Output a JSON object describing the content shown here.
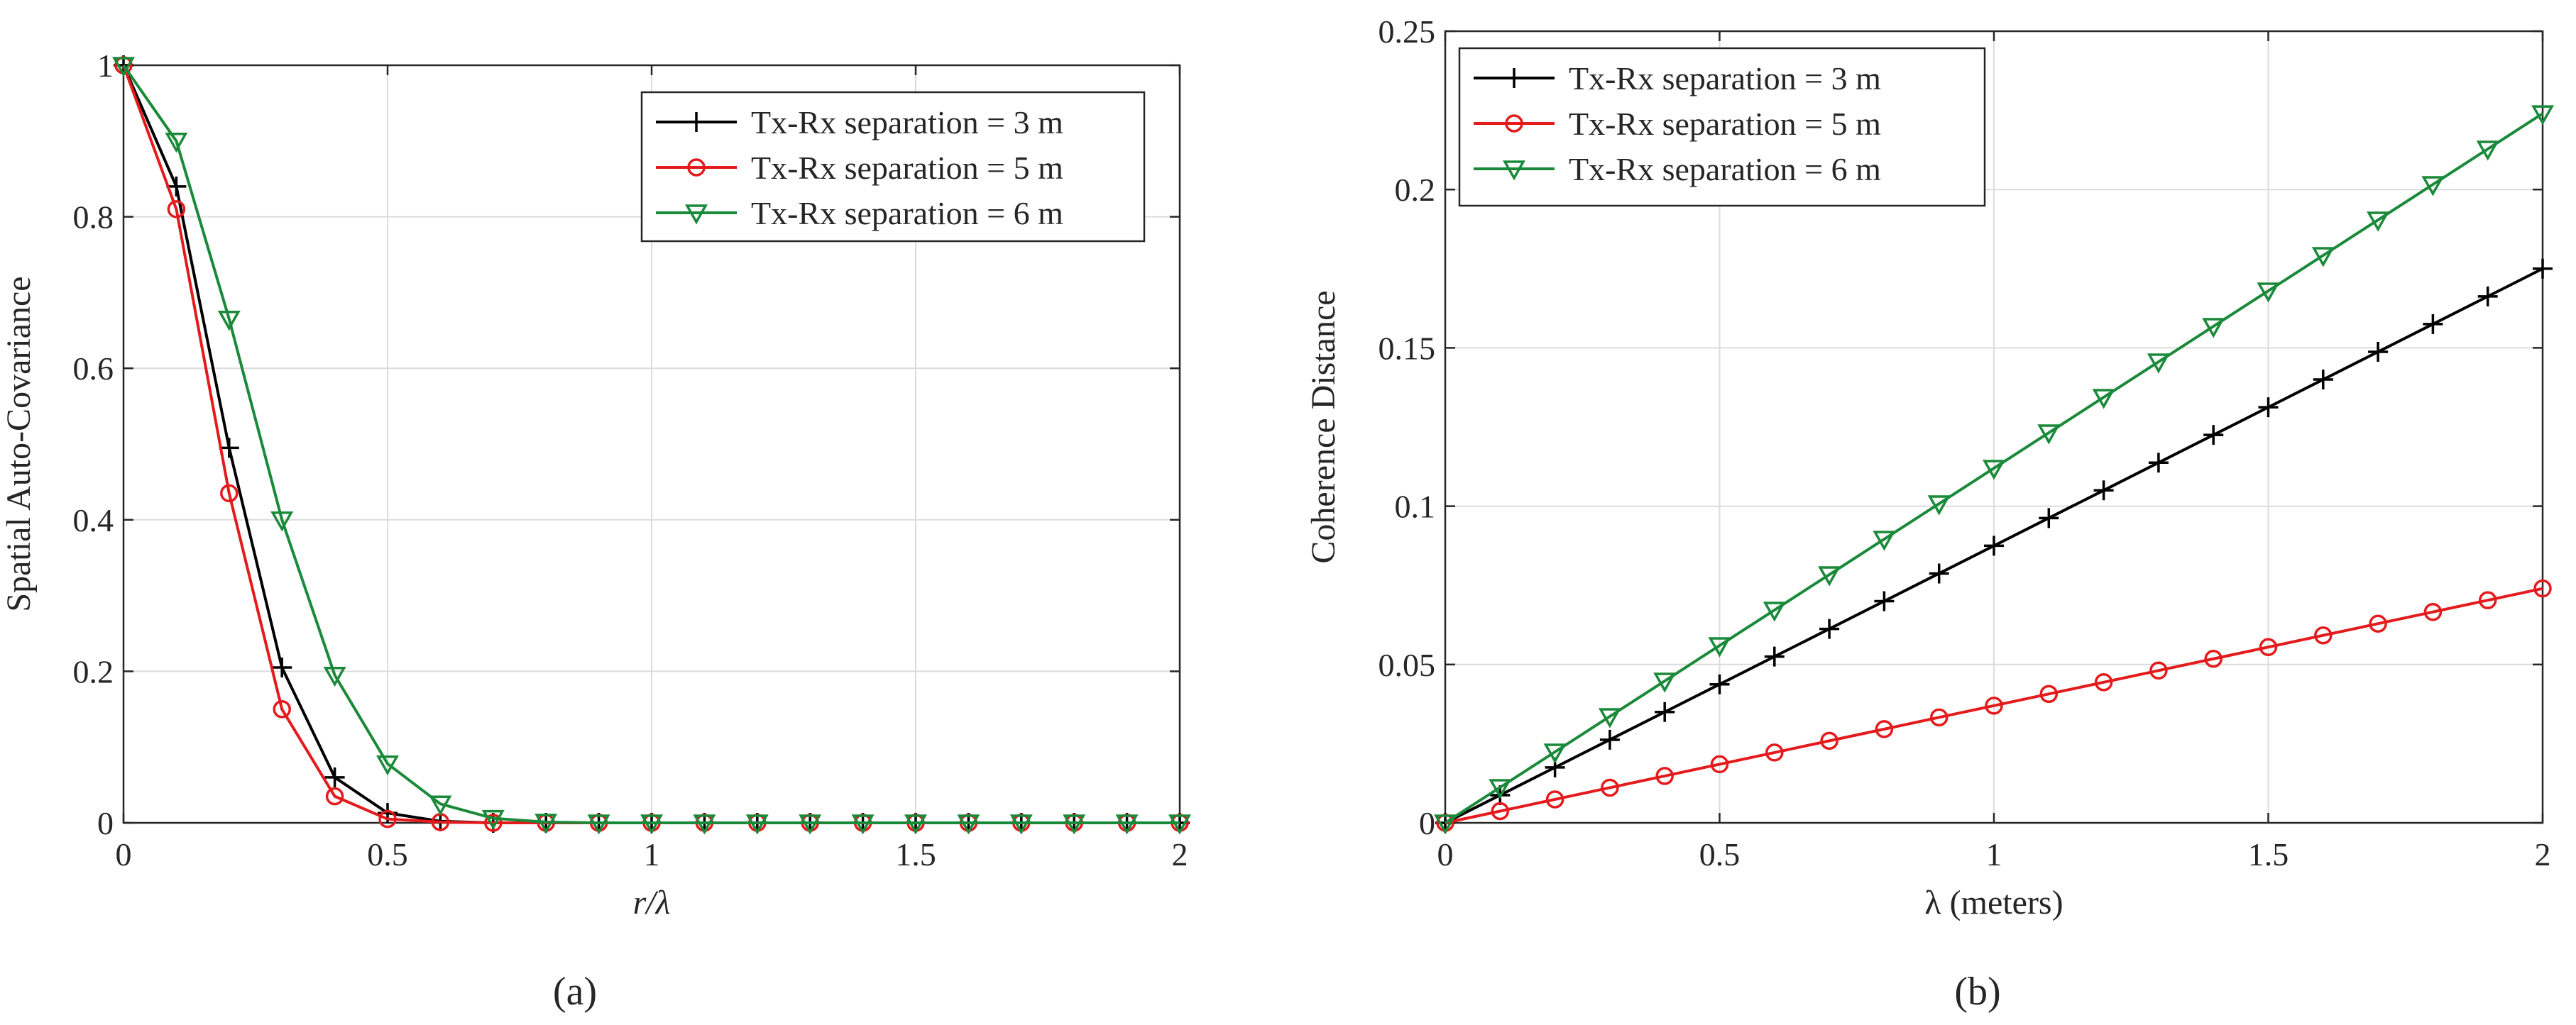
{
  "chart_data": [
    {
      "type": "line",
      "panel_label": "(a)",
      "title": "",
      "xlabel": "r/λ",
      "ylabel": "Spatial Auto-Covariance",
      "xlim": [
        0,
        2
      ],
      "ylim": [
        0,
        1
      ],
      "xticks": [
        0,
        0.5,
        1,
        1.5,
        2
      ],
      "xtick_labels": [
        "0",
        "0.5",
        "1",
        "1.5",
        "2"
      ],
      "yticks": [
        0,
        0.2,
        0.4,
        0.6,
        0.8,
        1
      ],
      "ytick_labels": [
        "0",
        "0.2",
        "0.4",
        "0.6",
        "0.8",
        "1"
      ],
      "grid": true,
      "legend_position": "top-right",
      "x": [
        0,
        0.1,
        0.2,
        0.3,
        0.4,
        0.5,
        0.6,
        0.7,
        0.8,
        0.9,
        1.0,
        1.1,
        1.2,
        1.3,
        1.4,
        1.5,
        1.6,
        1.7,
        1.8,
        1.9,
        2.0
      ],
      "series": [
        {
          "name": "Tx-Rx separation = 3 m",
          "color": "#000000",
          "marker": "plus",
          "values": [
            1,
            0.84,
            0.495,
            0.205,
            0.06,
            0.013,
            0.002,
            0,
            0,
            0,
            0,
            0,
            0,
            0,
            0,
            0,
            0,
            0,
            0,
            0,
            0
          ]
        },
        {
          "name": "Tx-Rx separation = 5 m",
          "color": "#e41a1c",
          "marker": "circle",
          "values": [
            1,
            0.81,
            0.435,
            0.15,
            0.035,
            0.005,
            0.001,
            0,
            0,
            0,
            0,
            0,
            0,
            0,
            0,
            0,
            0,
            0,
            0,
            0,
            0
          ]
        },
        {
          "name": "Tx-Rx separation = 6 m",
          "color": "#1a8a3a",
          "marker": "triangle-down",
          "values": [
            1,
            0.9,
            0.665,
            0.4,
            0.195,
            0.078,
            0.025,
            0.006,
            0.001,
            0,
            0,
            0,
            0,
            0,
            0,
            0,
            0,
            0,
            0,
            0,
            0
          ]
        }
      ]
    },
    {
      "type": "line",
      "panel_label": "(b)",
      "title": "",
      "xlabel": "λ (meters)",
      "ylabel": "Coherence Distance",
      "xlim": [
        0,
        2
      ],
      "ylim": [
        0,
        0.25
      ],
      "xticks": [
        0,
        0.5,
        1,
        1.5,
        2
      ],
      "xtick_labels": [
        "0",
        "0.5",
        "1",
        "1.5",
        "2"
      ],
      "yticks": [
        0,
        0.05,
        0.1,
        0.15,
        0.2,
        0.25
      ],
      "ytick_labels": [
        "0",
        "0.05",
        "0.1",
        "0.15",
        "0.2",
        "0.25"
      ],
      "grid": true,
      "legend_position": "top-left",
      "x": [
        0,
        0.1,
        0.2,
        0.3,
        0.4,
        0.5,
        0.6,
        0.7,
        0.8,
        0.9,
        1.0,
        1.1,
        1.2,
        1.3,
        1.4,
        1.5,
        1.6,
        1.7,
        1.8,
        1.9,
        2.0
      ],
      "series": [
        {
          "name": "Tx-Rx separation = 3 m",
          "color": "#000000",
          "marker": "plus",
          "values": [
            0,
            0.00875,
            0.0175,
            0.02625,
            0.035,
            0.04375,
            0.0525,
            0.06125,
            0.07,
            0.07875,
            0.0875,
            0.09625,
            0.105,
            0.11375,
            0.1225,
            0.13125,
            0.14,
            0.14875,
            0.1575,
            0.16625,
            0.175
          ]
        },
        {
          "name": "Tx-Rx separation = 5 m",
          "color": "#e41a1c",
          "marker": "circle",
          "values": [
            0,
            0.0037,
            0.0074,
            0.0111,
            0.0148,
            0.0185,
            0.0222,
            0.0259,
            0.0296,
            0.0333,
            0.037,
            0.0407,
            0.0444,
            0.0481,
            0.0518,
            0.0555,
            0.0592,
            0.0629,
            0.0666,
            0.0703,
            0.074
          ]
        },
        {
          "name": "Tx-Rx separation = 6 m",
          "color": "#1a8a3a",
          "marker": "triangle-down",
          "values": [
            0,
            0.0112,
            0.0224,
            0.0336,
            0.0448,
            0.056,
            0.0672,
            0.0784,
            0.0896,
            0.1008,
            0.112,
            0.1232,
            0.1344,
            0.1456,
            0.1568,
            0.168,
            0.1792,
            0.1904,
            0.2016,
            0.2128,
            0.224
          ]
        }
      ]
    }
  ]
}
